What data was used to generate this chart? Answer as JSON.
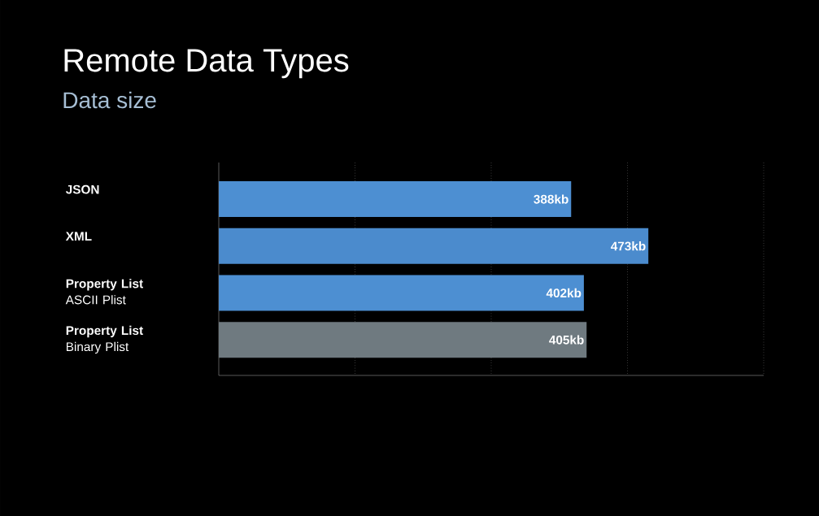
{
  "chart_data": {
    "type": "bar",
    "orientation": "horizontal",
    "title": "Remote Data Types",
    "subtitle": "Data size",
    "categories": [
      "**JSON**",
      "**XML**",
      "**Property List** ASCII Plist",
      "**Property List** Binary Plist"
    ],
    "values": [
      388,
      473,
      402,
      405
    ],
    "colors": [
      "#4d8fd2",
      "#4b8bcd",
      "#4d8fd2",
      "#6f7a80"
    ],
    "value_labels": [
      "388kb",
      "473kb",
      "402kb",
      "405kb"
    ],
    "xlim": [
      0,
      600
    ],
    "xticks": [
      {
        "value": 150,
        "label": null
      },
      {
        "value": 300,
        "label": null
      },
      {
        "value": 450,
        "label": null
      },
      {
        "value": 600,
        "label": null
      }
    ],
    "grid": "x"
  }
}
